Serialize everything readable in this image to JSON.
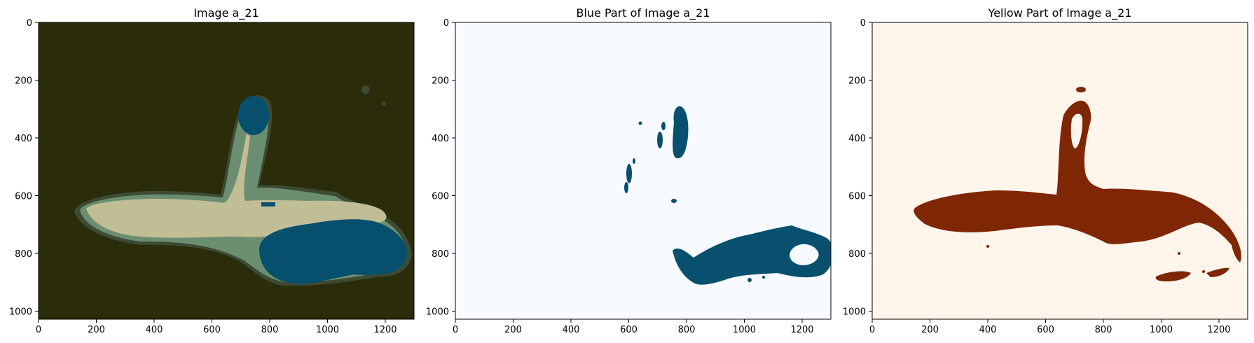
{
  "panels": [
    {
      "title": "Image a_21",
      "x_ticks": [
        "0",
        "200",
        "400",
        "600",
        "800",
        "1000",
        "1200"
      ],
      "y_ticks": [
        "0",
        "200",
        "400",
        "600",
        "800",
        "1000"
      ],
      "colors": {
        "background": "#2a2c0a",
        "halo_dark": "#3d4a34",
        "halo": "#6b8e70",
        "sample": "#c1bd95",
        "blue": "#06506e"
      }
    },
    {
      "title": "Blue Part of Image a_21",
      "x_ticks": [
        "0",
        "200",
        "400",
        "600",
        "800",
        "1000",
        "1200"
      ],
      "y_ticks": [
        "0",
        "200",
        "400",
        "600",
        "800",
        "1000"
      ],
      "colors": {
        "background": "#f7fbff",
        "blue": "#08506e"
      }
    },
    {
      "title": "Yellow Part of Image a_21",
      "x_ticks": [
        "0",
        "200",
        "400",
        "600",
        "800",
        "1000",
        "1200"
      ],
      "y_ticks": [
        "0",
        "200",
        "400",
        "600",
        "800",
        "1000"
      ],
      "colors": {
        "background": "#fff5eb",
        "yellow_mask": "#7f2704"
      }
    }
  ]
}
